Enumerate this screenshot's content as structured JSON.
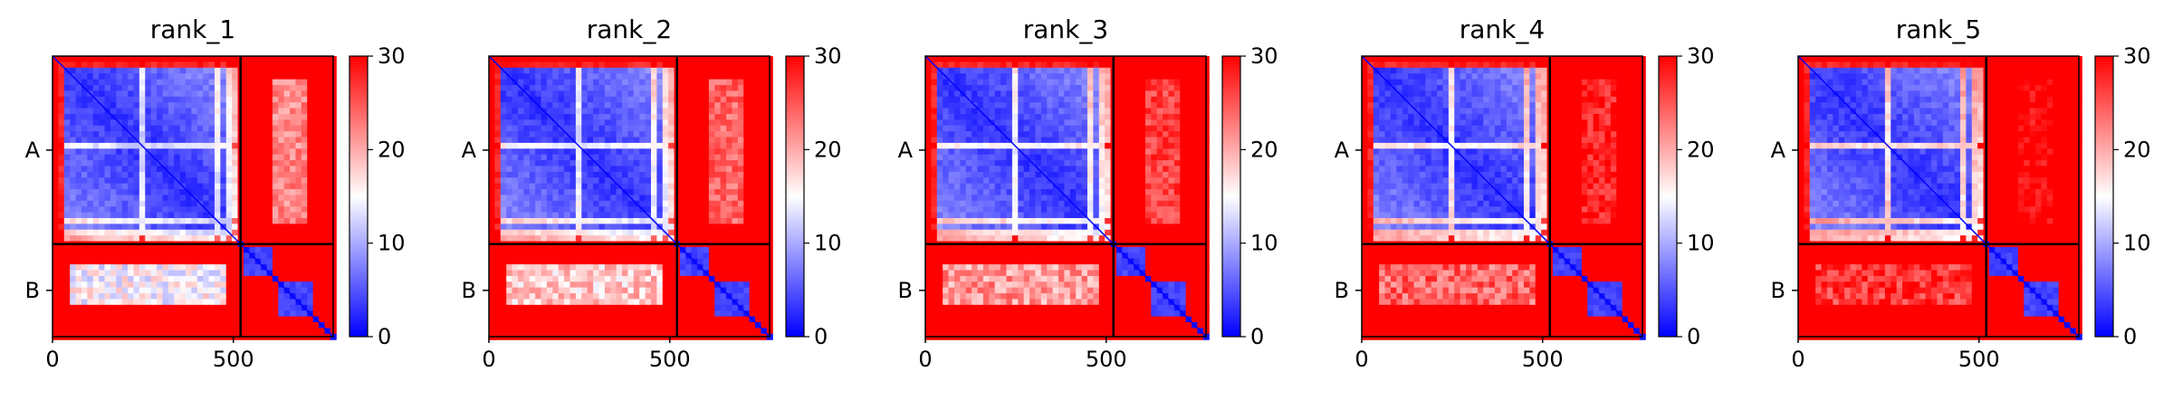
{
  "chart_data": {
    "type": "heatmap",
    "colormap": {
      "name": "bwr",
      "low": "#0000ff",
      "mid": "#ffffff",
      "high": "#ff0000"
    },
    "vmin": 0,
    "vmax": 30,
    "colorbar_ticks": [
      "0",
      "10",
      "20",
      "30"
    ],
    "x_ticks": [
      0,
      500
    ],
    "x_tick_labels": [
      "0",
      "500"
    ],
    "xlim": [
      0,
      776
    ],
    "chain_boundary": 520,
    "chains": [
      {
        "label": "A",
        "start": 0,
        "end": 520
      },
      {
        "label": "B",
        "start": 520,
        "end": 776
      }
    ],
    "panels": [
      {
        "title": "rank_1"
      },
      {
        "title": "rank_2"
      },
      {
        "title": "rank_3"
      },
      {
        "title": "rank_4"
      },
      {
        "title": "rank_5"
      }
    ]
  }
}
